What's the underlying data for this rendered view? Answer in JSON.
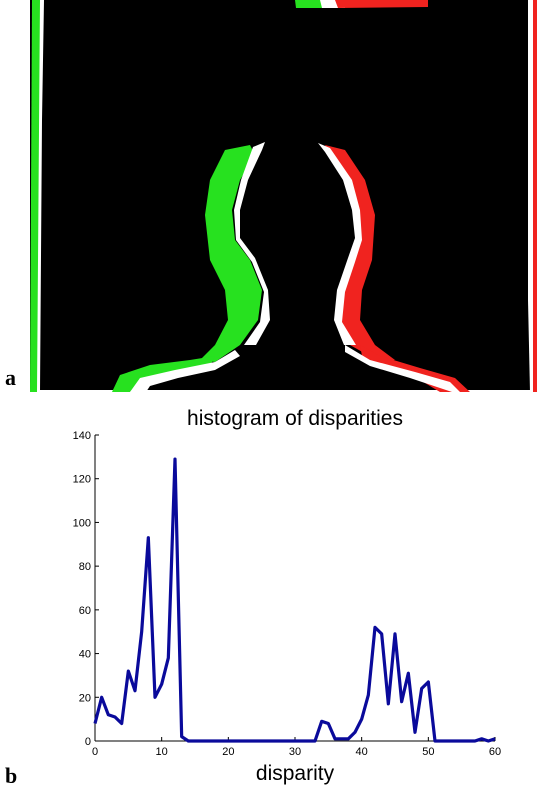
{
  "panel_a": {
    "letter": "a",
    "colors": {
      "background": "#000000",
      "left_view": "#27e11f",
      "right_view": "#f0231f",
      "edge": "#ffffff"
    }
  },
  "panel_b": {
    "letter": "b"
  },
  "chart_data": {
    "type": "line",
    "title": "histogram of disparities",
    "xlabel": "disparity",
    "ylabel": "",
    "xlim": [
      0,
      60
    ],
    "ylim": [
      0,
      140
    ],
    "xticks": [
      0,
      10,
      20,
      30,
      40,
      50,
      60
    ],
    "yticks": [
      0,
      20,
      40,
      60,
      80,
      100,
      120,
      140
    ],
    "grid": false,
    "series": [
      {
        "color": "#0a0a9b",
        "x": [
          0,
          1,
          2,
          3,
          4,
          5,
          6,
          7,
          8,
          9,
          10,
          11,
          12,
          13,
          14,
          15,
          16,
          17,
          18,
          19,
          20,
          21,
          22,
          23,
          24,
          25,
          26,
          27,
          28,
          29,
          30,
          31,
          32,
          33,
          34,
          35,
          36,
          37,
          38,
          39,
          40,
          41,
          42,
          43,
          44,
          45,
          46,
          47,
          48,
          49,
          50,
          51,
          52,
          53,
          54,
          55,
          56,
          57,
          58,
          59,
          60
        ],
        "values": [
          8,
          20,
          12,
          11,
          8,
          32,
          23,
          50,
          93,
          20,
          26,
          38,
          129,
          2,
          0,
          0,
          0,
          0,
          0,
          0,
          0,
          0,
          0,
          0,
          0,
          0,
          0,
          0,
          0,
          0,
          0,
          0,
          0,
          0,
          9,
          8,
          1,
          1,
          1,
          4,
          10,
          21,
          52,
          49,
          17,
          49,
          18,
          31,
          4,
          24,
          27,
          0,
          0,
          0,
          0,
          0,
          0,
          0,
          1,
          0,
          1
        ]
      }
    ]
  }
}
